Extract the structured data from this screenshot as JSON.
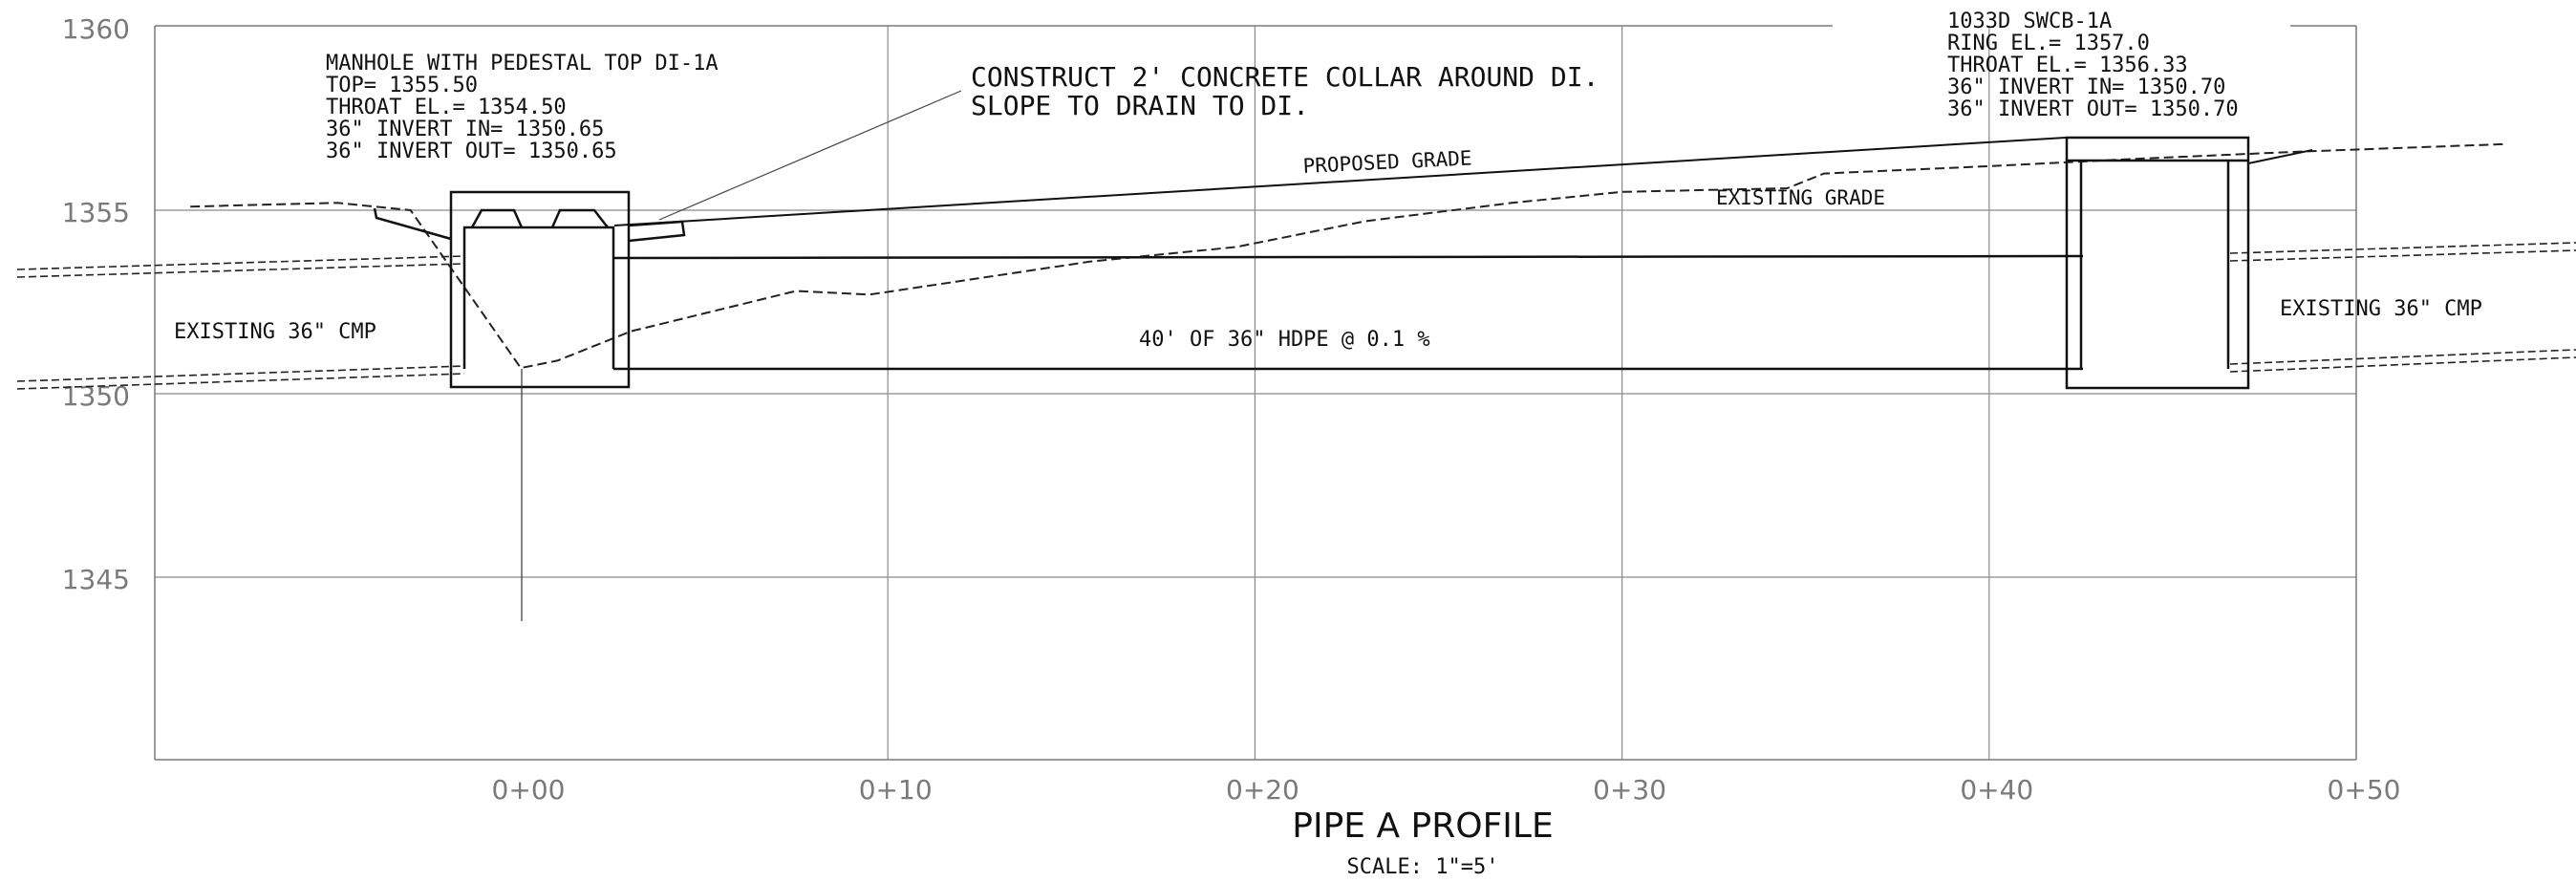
{
  "title": "PIPE A PROFILE",
  "scale": "SCALE: 1\"=5'",
  "chart_data": {
    "type": "profile",
    "title": "PIPE A PROFILE",
    "subtitle": "SCALE: 1\"=5'",
    "x_ticks": [
      "0+00",
      "0+10",
      "0+20",
      "0+30",
      "0+40",
      "0+50"
    ],
    "y_ticks": [
      "1360",
      "1355",
      "1350",
      "1345"
    ],
    "xlim": [
      -10,
      50
    ],
    "ylim": [
      1340,
      1360
    ],
    "grid": true,
    "existing_grade": [
      [
        -9,
        1355.1
      ],
      [
        -5,
        1355.2
      ],
      [
        -3,
        1355.0
      ],
      [
        0,
        1350.7
      ],
      [
        1,
        1350.9
      ],
      [
        3,
        1351.7
      ],
      [
        7.5,
        1352.8
      ],
      [
        9.5,
        1352.7
      ],
      [
        15.5,
        1353.6
      ],
      [
        19.5,
        1354.0
      ],
      [
        23,
        1354.7
      ],
      [
        27,
        1355.2
      ],
      [
        30,
        1355.5
      ],
      [
        34.5,
        1355.6
      ],
      [
        35.5,
        1356.0
      ],
      [
        40,
        1356.2
      ],
      [
        44,
        1356.4
      ],
      [
        48.5,
        1356.6
      ],
      [
        54,
        1356.8
      ]
    ],
    "proposed_grade": [
      [
        3.5,
        1354.5
      ],
      [
        42.5,
        1356.9
      ]
    ],
    "pipe": {
      "from_station": 2.5,
      "to_station": 42.5,
      "invert_in": 1350.65,
      "invert_out": 1350.7,
      "diameter_in": 36
    }
  },
  "labels": {
    "manhole": [
      "MANHOLE WITH PEDESTAL TOP DI-1A",
      "TOP= 1355.50",
      "THROAT EL.= 1354.50",
      "36\" INVERT IN= 1350.65",
      "36\" INVERT OUT= 1350.65"
    ],
    "collar": [
      "CONSTRUCT 2' CONCRETE COLLAR AROUND DI.",
      "SLOPE TO DRAIN TO DI."
    ],
    "swcb": [
      "1033D SWCB-1A",
      "RING EL.= 1357.0",
      "THROAT EL.= 1356.33",
      "36\" INVERT IN= 1350.70",
      "36\" INVERT OUT= 1350.70"
    ],
    "proposed_grade": "PROPOSED GRADE",
    "existing_grade": "EXISTING GRADE",
    "existing_cmp_left": "EXISTING 36\" CMP",
    "existing_cmp_right": "EXISTING 36\" CMP",
    "hdpe": "40' OF 36\" HDPE @ 0.1 %"
  }
}
